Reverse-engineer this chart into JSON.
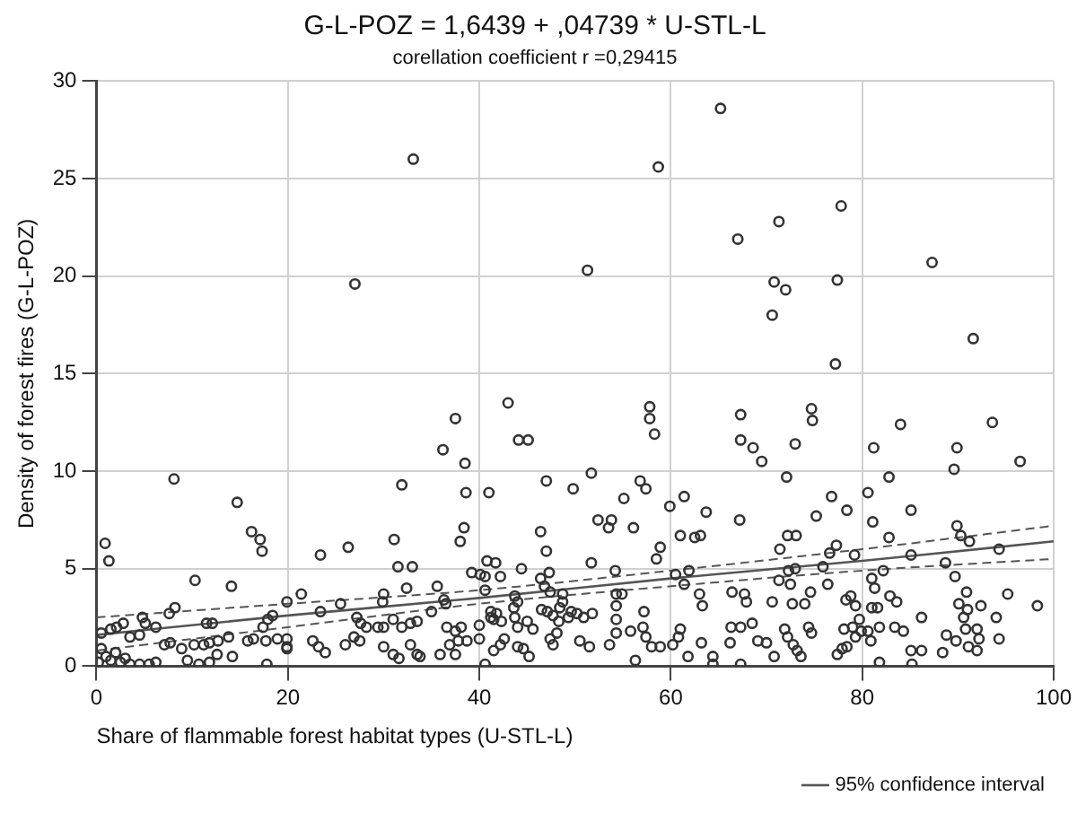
{
  "chart_data": {
    "type": "scatter",
    "title": "G-L-POZ = 1,6439 + ,04739 * U-STL-L",
    "subtitle": "corellation coefficient r =0,29415",
    "xlabel": "Share of flammable forest habitat types (U-STL-L)",
    "ylabel": "Density of forest fires (G-L-POZ)",
    "xlim": [
      0,
      100
    ],
    "xticks": [
      0,
      20,
      40,
      60,
      80,
      100
    ],
    "ylim": [
      0,
      30
    ],
    "yticks": [
      0,
      5,
      10,
      15,
      20,
      25,
      30
    ],
    "grid": true,
    "legend": "bottom right",
    "marker": "circle",
    "series": [
      {
        "color": "#333333",
        "x": [
          33.1,
          27.0,
          43.0,
          37.5,
          44.1,
          45.1,
          36.2,
          65.2,
          58.7,
          77.8,
          71.3,
          67.0,
          51.3,
          87.3,
          70.8,
          72.0,
          77.4,
          70.6,
          91.6,
          77.2,
          57.8,
          57.8,
          58.3,
          67.3,
          67.3,
          68.6,
          73.0,
          74.7,
          74.8,
          84.0,
          93.6,
          81.2,
          89.9,
          8.1,
          14.7,
          31.9,
          38.5,
          38.6,
          41.0,
          47.0,
          49.8,
          0.9,
          1.3,
          10.3,
          14.1,
          16.2,
          17.1,
          17.3,
          23.4,
          26.3,
          31.1,
          31.5,
          33.0,
          38.0,
          38.4,
          40.8,
          41.7,
          39.2,
          40.1,
          40.6,
          42.2,
          46.4,
          47.0,
          47.3,
          44.4,
          46.4,
          0.5,
          0.2,
          0.5,
          1.0,
          1.5,
          2.0,
          2.5,
          3.0,
          3.5,
          4.5,
          5.5,
          6.2,
          1.5,
          2.1,
          2.8,
          4.8,
          5.1,
          4.5,
          3.5,
          6.2,
          7.6,
          8.2,
          7.1,
          7.7,
          8.9,
          10.2,
          11.2,
          11.8,
          12.7,
          11.5,
          12.1,
          9.5,
          10.7,
          11.8,
          12.6,
          14.2,
          13.8,
          15.8,
          16.4,
          17.7,
          18.9,
          17.4,
          17.9,
          18.4,
          19.9,
          21.4,
          17.8,
          19.9,
          19.9,
          19.9,
          22.6,
          23.2,
          23.9,
          23.4,
          25.5,
          26.0,
          26.9,
          27.5,
          27.2,
          27.6,
          28.2,
          29.4,
          30.0,
          31.0,
          29.9,
          30.0,
          30.0,
          31.0,
          31.6,
          31.9,
          32.8,
          33.5,
          32.8,
          33.5,
          33.8,
          32.4,
          35.0,
          35.6,
          36.3,
          36.5,
          36.6,
          37.5,
          38.1,
          36.9,
          37.8,
          38.7,
          35.9,
          37.5,
          40.6,
          40.0,
          40.0,
          41.2,
          41.5,
          42.3,
          40.6,
          41.2,
          41.8,
          41.5,
          42.2,
          42.6,
          43.7,
          44.0,
          43.6,
          43.7,
          44.0,
          45.0,
          45.6,
          44.0,
          44.6,
          45.2,
          46.5,
          47.1,
          47.7,
          47.4,
          46.8,
          47.4,
          47.7,
          48.3,
          48.7,
          49.6,
          69.5,
          72.1,
          82.8,
          89.6,
          96.5,
          51.7,
          56.8,
          57.4,
          55.1,
          59.9,
          61.4,
          63.7,
          52.4,
          53.8,
          53.5,
          56.1,
          61.0,
          62.5,
          63.1,
          67.2,
          72.2,
          73.1,
          75.2,
          76.8,
          78.4,
          80.6,
          81.1,
          82.8,
          85.1,
          89.9,
          90.3,
          91.2,
          94.3,
          58.9,
          58.5,
          51.7,
          54.2,
          60.5,
          61.4,
          61.9,
          71.4,
          76.6,
          77.3,
          79.2,
          85.1,
          88.7,
          89.7,
          95.2,
          98.3,
          72.3,
          73.0,
          71.3,
          72.5,
          75.9,
          76.4,
          81.0,
          81.3,
          82.2,
          63.0,
          63.3,
          66.4,
          67.7,
          67.9,
          70.6,
          72.7,
          74.0,
          74.6,
          78.3,
          78.8,
          79.3,
          81.0,
          81.6,
          82.9,
          83.6,
          90.1,
          90.9,
          90.6,
          91.0,
          94.0,
          92.0,
          92.4,
          48.7,
          48.4,
          49.3,
          50.2,
          50.9,
          51.8,
          54.3,
          54.9,
          54.3,
          54.3,
          57.2,
          48.1,
          50.5,
          51.5,
          53.6,
          54.3,
          55.8,
          57.1,
          57.4,
          58.0,
          58.9,
          60.2,
          61.0,
          60.8,
          61.8,
          63.2,
          64.4,
          64.4,
          56.3,
          66.3,
          67.3,
          68.5,
          69.1,
          70.0,
          71.9,
          72.2,
          72.8,
          73.2,
          73.6,
          74.4,
          74.7,
          66.2,
          67.3,
          70.8,
          77.4,
          78.1,
          78.4,
          79.0,
          79.7,
          80.6,
          80.9,
          81.8,
          83.4,
          84.3,
          85.1,
          86.2,
          85.2,
          81.8,
          77.9,
          79.3,
          79.9,
          86.2,
          88.4,
          88.8,
          89.8,
          90.8,
          91.1,
          92.0,
          92.2,
          94.3
        ],
        "values": [
          26.0,
          19.6,
          13.5,
          12.7,
          11.6,
          11.6,
          11.1,
          28.6,
          25.6,
          23.6,
          22.8,
          21.9,
          20.3,
          20.7,
          19.7,
          19.3,
          19.8,
          18.0,
          16.8,
          15.5,
          13.3,
          12.7,
          11.9,
          12.9,
          11.6,
          11.2,
          11.4,
          13.2,
          12.6,
          12.4,
          12.5,
          11.2,
          11.2,
          9.6,
          8.4,
          9.3,
          10.4,
          8.9,
          8.9,
          9.5,
          9.1,
          6.3,
          5.4,
          4.4,
          4.1,
          6.9,
          6.5,
          5.9,
          5.7,
          6.1,
          6.5,
          5.1,
          5.1,
          6.4,
          7.1,
          5.4,
          5.3,
          4.8,
          4.7,
          4.6,
          4.6,
          6.9,
          5.9,
          4.8,
          5.0,
          4.5,
          1.7,
          0.2,
          0.9,
          0.5,
          0.3,
          0.7,
          0.2,
          0.4,
          0.1,
          0.1,
          0.1,
          0.2,
          1.9,
          2.0,
          2.2,
          2.5,
          2.2,
          1.6,
          1.5,
          2.0,
          2.7,
          3.0,
          1.1,
          1.2,
          0.9,
          1.1,
          1.1,
          1.2,
          1.3,
          2.2,
          2.2,
          0.3,
          0.1,
          0.2,
          0.6,
          0.5,
          1.5,
          1.3,
          1.4,
          1.3,
          1.4,
          2.0,
          2.4,
          2.6,
          3.3,
          3.7,
          0.1,
          1.4,
          1.0,
          0.9,
          1.3,
          1.0,
          0.7,
          2.8,
          3.2,
          1.1,
          1.5,
          1.3,
          2.5,
          2.2,
          2.0,
          2.0,
          2.0,
          2.4,
          3.3,
          3.7,
          1.0,
          0.6,
          0.4,
          2.0,
          2.2,
          2.3,
          1.1,
          0.6,
          0.5,
          4.0,
          2.8,
          4.1,
          3.4,
          3.2,
          2.0,
          1.8,
          2.0,
          1.1,
          1.3,
          1.3,
          0.6,
          0.6,
          0.1,
          2.1,
          1.4,
          2.5,
          2.4,
          2.3,
          3.9,
          2.8,
          2.7,
          0.8,
          1.1,
          1.4,
          3.6,
          3.3,
          3.0,
          2.5,
          2.0,
          2.3,
          1.9,
          1.0,
          0.9,
          0.5,
          2.9,
          2.8,
          2.6,
          3.8,
          4.1,
          1.4,
          1.1,
          2.3,
          3.3,
          2.8,
          10.5,
          9.7,
          9.7,
          10.1,
          10.5,
          9.9,
          9.5,
          9.1,
          8.6,
          8.2,
          8.7,
          7.9,
          7.5,
          7.5,
          7.1,
          7.1,
          6.7,
          6.6,
          6.7,
          7.5,
          6.7,
          6.7,
          7.7,
          8.7,
          8.0,
          8.9,
          7.4,
          6.6,
          8.0,
          7.2,
          6.7,
          6.4,
          6.0,
          6.1,
          5.5,
          5.3,
          4.9,
          4.7,
          4.2,
          4.9,
          6.0,
          5.8,
          6.2,
          5.7,
          5.7,
          5.3,
          4.6,
          3.7,
          3.1,
          4.9,
          5.0,
          4.4,
          4.2,
          5.1,
          4.2,
          4.5,
          4.0,
          4.9,
          3.7,
          3.1,
          3.8,
          3.7,
          3.3,
          3.3,
          3.2,
          3.2,
          3.8,
          3.4,
          3.6,
          3.1,
          3.0,
          3.0,
          3.6,
          3.3,
          3.2,
          3.8,
          2.5,
          2.9,
          2.5,
          1.9,
          3.1,
          3.7,
          3.0,
          2.5,
          2.7,
          2.5,
          2.7,
          3.7,
          3.7,
          3.1,
          2.4,
          2.8,
          1.7,
          1.3,
          1.0,
          1.1,
          1.7,
          1.8,
          2.0,
          1.5,
          1.0,
          1.0,
          1.1,
          1.9,
          1.5,
          0.5,
          1.2,
          0.5,
          0.1,
          0.3,
          2.0,
          2.0,
          2.2,
          1.3,
          1.2,
          1.9,
          1.5,
          1.1,
          0.8,
          0.5,
          2.0,
          1.7,
          1.2,
          0.1,
          0.5,
          0.6,
          1.9,
          1.0,
          2.0,
          2.4,
          1.8,
          1.3,
          2.0,
          2.0,
          1.8,
          0.8,
          0.8,
          0.1,
          0.2,
          0.9,
          1.5,
          1.8,
          2.5,
          0.7,
          1.6,
          1.3,
          1.9,
          1.0,
          0.8,
          1.4,
          1.4
        ]
      },
      {
        "type": "line",
        "name": "95% confidence interval",
        "color": "#555555",
        "marker": "none",
        "x": [
          0,
          20,
          40,
          60,
          80,
          100
        ],
        "values": [
          1.6,
          2.6,
          3.5,
          4.5,
          5.4,
          6.4
        ]
      },
      {
        "type": "line",
        "color": "#555555",
        "marker": "none",
        "line_style": "dashed",
        "x": [
          0,
          20,
          40,
          60,
          80,
          100
        ],
        "values": [
          0.8,
          2.0,
          3.2,
          4.1,
          4.9,
          5.5
        ]
      },
      {
        "type": "line",
        "color": "#555555",
        "marker": "none",
        "line_style": "dashed",
        "x": [
          0,
          20,
          40,
          60,
          80,
          100
        ],
        "values": [
          2.5,
          3.2,
          3.9,
          4.9,
          6.0,
          7.2
        ]
      }
    ]
  }
}
